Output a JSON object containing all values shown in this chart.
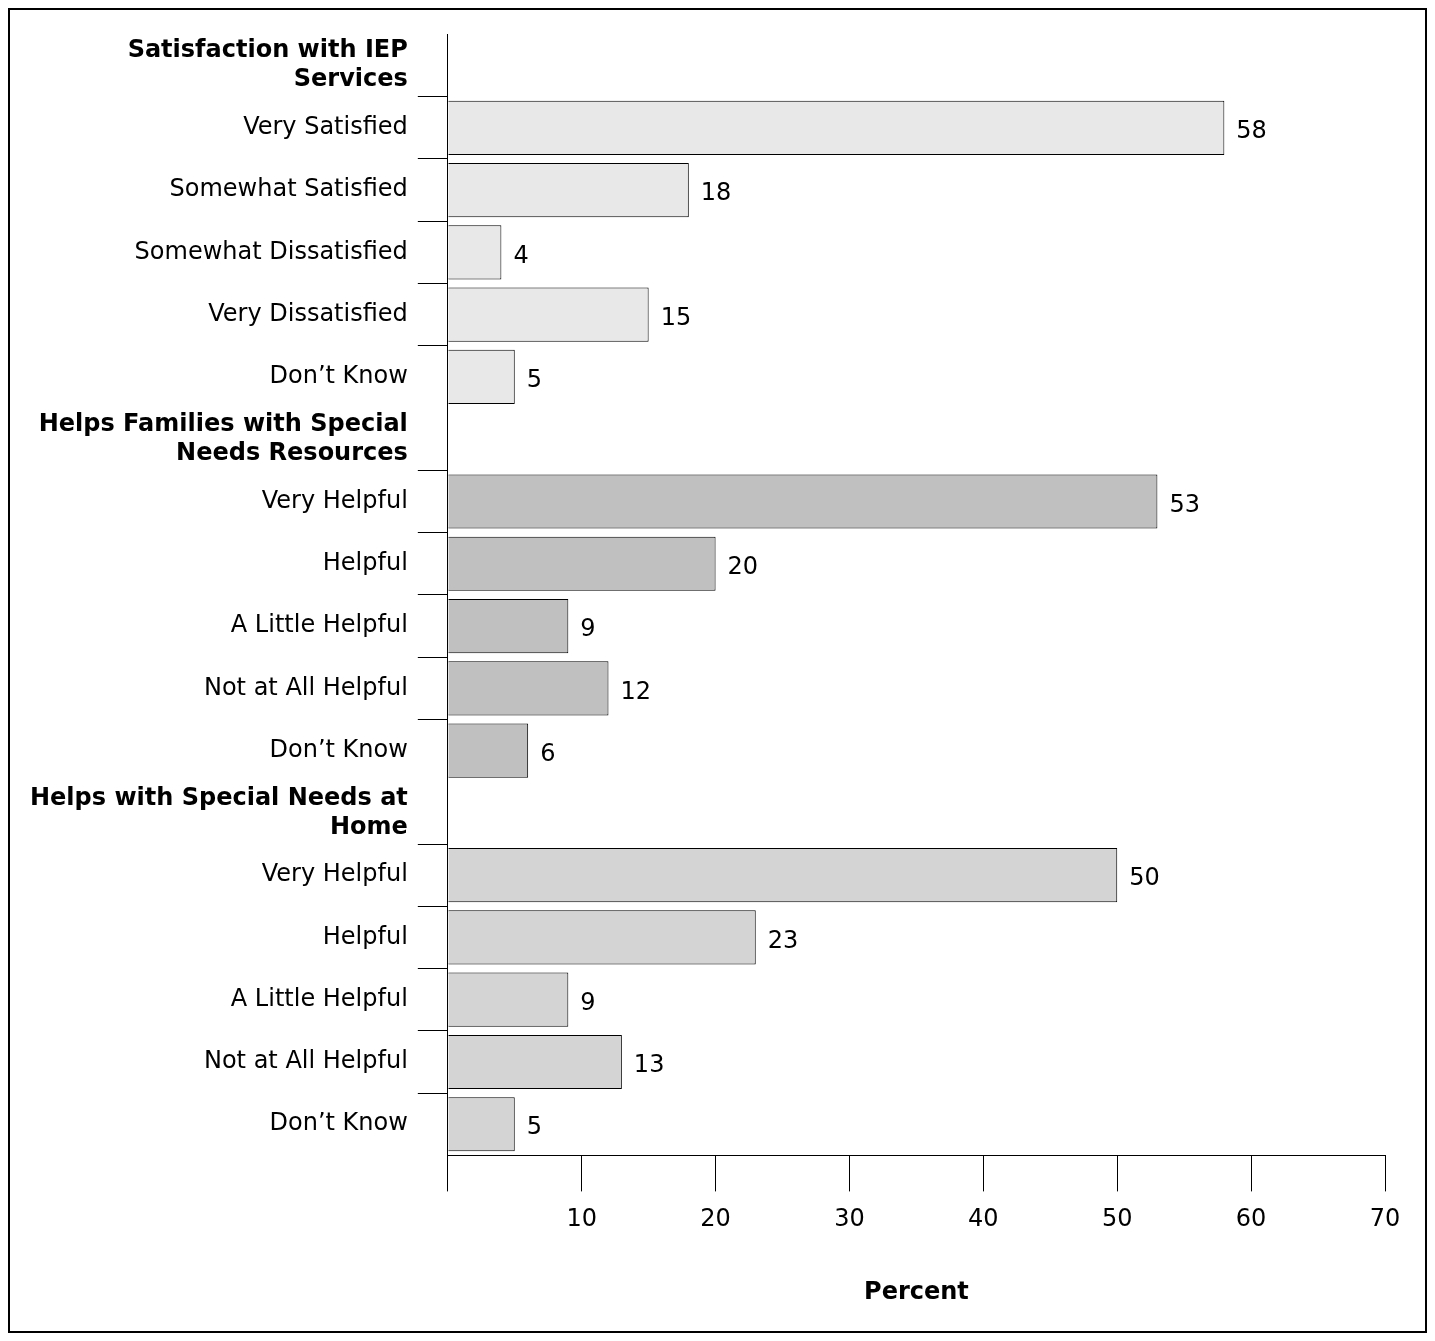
{
  "chart_data": {
    "type": "bar",
    "orientation": "horizontal",
    "xlabel": "Percent",
    "categories": [
      "Satisfaction with IEP Services",
      "Very Satisfied",
      "Somewhat Satisfied",
      "Somewhat Dissatisfied",
      "Very Dissatisfied",
      "Don’t Know",
      "Helps Families with Special Needs Resources",
      "Very Helpful",
      "Helpful",
      "A Little Helpful",
      "Not at All Helpful",
      "Don’t Know",
      "Helps with Special Needs at Home",
      "Very Helpful",
      "Helpful",
      "A Little Helpful",
      "Not at All Helpful",
      "Don’t Know"
    ],
    "values": [
      null,
      58,
      18,
      4,
      15,
      5,
      null,
      53,
      20,
      9,
      12,
      6,
      null,
      50,
      23,
      9,
      13,
      5
    ],
    "colors": [
      null,
      "#e8e8e8",
      "#e8e8e8",
      "#e8e8e8",
      "#e8e8e8",
      "#e8e8e8",
      null,
      "#c0c0c0",
      "#c0c0c0",
      "#c0c0c0",
      "#c0c0c0",
      "#c0c0c0",
      null,
      "#d4d4d4",
      "#d4d4d4",
      "#d4d4d4",
      "#d4d4d4",
      "#d4d4d4"
    ],
    "xlim": [
      0,
      70
    ],
    "xticks": [
      {
        "value": 0,
        "label": null
      },
      10,
      20,
      30,
      40,
      50,
      60,
      70
    ],
    "data_labels": true,
    "grid": false,
    "legend": false
  }
}
